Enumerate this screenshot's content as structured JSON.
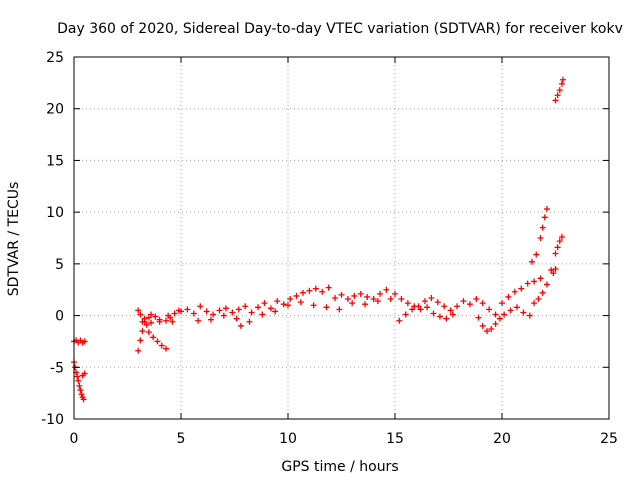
{
  "chart_data": {
    "type": "scatter",
    "title": "Day 360 of 2020, Sidereal Day-to-day VTEC variation (SDTVAR) for receiver kokv",
    "xlabel": "GPS time / hours",
    "ylabel": "SDTVAR / TECUs",
    "xlim": [
      0,
      25
    ],
    "ylim": [
      -10,
      25
    ],
    "xticks": [
      0,
      5,
      10,
      15,
      20,
      25
    ],
    "yticks": [
      -10,
      -5,
      0,
      5,
      10,
      15,
      20,
      25
    ],
    "xtick_labels": [
      "0",
      "5",
      "10",
      "15",
      "20",
      "25"
    ],
    "ytick_labels": [
      "-10",
      "-5",
      "0",
      "5",
      "10",
      "15",
      "20",
      "25"
    ],
    "grid": true,
    "marker": "+",
    "color": "#ff0000",
    "series": [
      {
        "name": "kokv",
        "points": [
          [
            0.0,
            -2.5
          ],
          [
            0.1,
            -2.4
          ],
          [
            0.2,
            -2.6
          ],
          [
            0.3,
            -2.4
          ],
          [
            0.4,
            -2.6
          ],
          [
            0.5,
            -2.5
          ],
          [
            0.0,
            -4.5
          ],
          [
            0.05,
            -5.0
          ],
          [
            0.1,
            -5.5
          ],
          [
            0.15,
            -5.9
          ],
          [
            0.2,
            -6.3
          ],
          [
            0.25,
            -6.8
          ],
          [
            0.3,
            -7.2
          ],
          [
            0.35,
            -7.6
          ],
          [
            0.4,
            -7.9
          ],
          [
            0.45,
            -8.1
          ],
          [
            0.4,
            -5.8
          ],
          [
            0.5,
            -5.6
          ],
          [
            3.0,
            -3.4
          ],
          [
            3.1,
            -2.4
          ],
          [
            3.2,
            -1.5
          ],
          [
            3.3,
            -0.6
          ],
          [
            3.4,
            -0.9
          ],
          [
            3.5,
            -1.6
          ],
          [
            3.7,
            -2.1
          ],
          [
            3.9,
            -2.5
          ],
          [
            4.1,
            -2.9
          ],
          [
            4.3,
            -3.2
          ],
          [
            3.0,
            0.5
          ],
          [
            3.1,
            0.1
          ],
          [
            3.3,
            -0.3
          ],
          [
            3.5,
            -0.2
          ],
          [
            3.6,
            0.1
          ],
          [
            3.8,
            -0.1
          ],
          [
            4.0,
            -0.4
          ],
          [
            4.3,
            -0.5
          ],
          [
            4.5,
            -0.2
          ],
          [
            4.7,
            0.2
          ],
          [
            4.9,
            0.5
          ],
          [
            3.2,
            -0.6
          ],
          [
            3.6,
            -0.7
          ],
          [
            4.0,
            -0.6
          ],
          [
            4.4,
            0.0
          ],
          [
            4.6,
            -0.6
          ],
          [
            5.0,
            0.4
          ],
          [
            5.3,
            0.6
          ],
          [
            5.6,
            0.2
          ],
          [
            5.9,
            0.9
          ],
          [
            6.2,
            0.4
          ],
          [
            6.5,
            0.1
          ],
          [
            6.8,
            0.5
          ],
          [
            7.1,
            0.7
          ],
          [
            7.4,
            0.3
          ],
          [
            7.7,
            0.6
          ],
          [
            8.0,
            0.9
          ],
          [
            8.3,
            0.3
          ],
          [
            8.6,
            0.8
          ],
          [
            8.9,
            1.2
          ],
          [
            9.2,
            0.7
          ],
          [
            9.5,
            1.4
          ],
          [
            9.8,
            1.1
          ],
          [
            10.1,
            1.6
          ],
          [
            10.4,
            1.9
          ],
          [
            10.7,
            2.2
          ],
          [
            11.0,
            2.4
          ],
          [
            11.3,
            2.6
          ],
          [
            11.6,
            2.3
          ],
          [
            11.9,
            2.7
          ],
          [
            12.2,
            1.7
          ],
          [
            12.5,
            2.0
          ],
          [
            12.8,
            1.6
          ],
          [
            13.1,
            1.9
          ],
          [
            13.4,
            2.1
          ],
          [
            13.7,
            1.8
          ],
          [
            14.0,
            1.6
          ],
          [
            14.3,
            2.1
          ],
          [
            14.6,
            2.5
          ],
          [
            5.8,
            -0.5
          ],
          [
            6.4,
            -0.4
          ],
          [
            7.0,
            0.0
          ],
          [
            7.6,
            -0.3
          ],
          [
            7.8,
            -1.0
          ],
          [
            8.2,
            -0.6
          ],
          [
            8.8,
            0.1
          ],
          [
            9.4,
            0.4
          ],
          [
            10.0,
            1.0
          ],
          [
            10.6,
            1.3
          ],
          [
            11.2,
            1.0
          ],
          [
            11.8,
            0.8
          ],
          [
            12.4,
            0.6
          ],
          [
            13.0,
            1.2
          ],
          [
            13.6,
            1.1
          ],
          [
            14.2,
            1.4
          ],
          [
            14.8,
            1.6
          ],
          [
            15.0,
            2.1
          ],
          [
            15.3,
            1.6
          ],
          [
            15.6,
            1.2
          ],
          [
            15.9,
            0.9
          ],
          [
            16.2,
            0.6
          ],
          [
            16.5,
            0.8
          ],
          [
            16.8,
            0.2
          ],
          [
            17.1,
            -0.1
          ],
          [
            17.4,
            -0.3
          ],
          [
            17.7,
            0.1
          ],
          [
            15.2,
            -0.5
          ],
          [
            15.5,
            0.1
          ],
          [
            15.8,
            0.6
          ],
          [
            16.1,
            0.9
          ],
          [
            16.4,
            1.4
          ],
          [
            16.7,
            1.7
          ],
          [
            17.0,
            1.3
          ],
          [
            17.3,
            0.9
          ],
          [
            17.6,
            0.5
          ],
          [
            17.9,
            0.9
          ],
          [
            18.2,
            1.4
          ],
          [
            18.5,
            1.1
          ],
          [
            18.8,
            1.6
          ],
          [
            19.1,
            1.2
          ],
          [
            19.4,
            0.6
          ],
          [
            19.7,
            0.1
          ],
          [
            18.9,
            -0.2
          ],
          [
            19.1,
            -1.0
          ],
          [
            19.3,
            -1.5
          ],
          [
            19.5,
            -1.3
          ],
          [
            19.7,
            -0.8
          ],
          [
            19.9,
            -0.3
          ],
          [
            20.1,
            0.1
          ],
          [
            20.4,
            0.5
          ],
          [
            20.7,
            0.8
          ],
          [
            21.0,
            0.3
          ],
          [
            21.3,
            0.0
          ],
          [
            20.0,
            1.2
          ],
          [
            20.3,
            1.8
          ],
          [
            20.6,
            2.3
          ],
          [
            20.9,
            2.6
          ],
          [
            21.2,
            3.1
          ],
          [
            21.5,
            3.3
          ],
          [
            21.8,
            3.6
          ],
          [
            21.5,
            1.2
          ],
          [
            21.7,
            1.6
          ],
          [
            21.9,
            2.2
          ],
          [
            22.1,
            3.0
          ],
          [
            22.3,
            4.4
          ],
          [
            22.5,
            4.5
          ],
          [
            22.4,
            4.1
          ],
          [
            21.4,
            5.2
          ],
          [
            21.6,
            5.9
          ],
          [
            21.8,
            7.5
          ],
          [
            21.9,
            8.5
          ],
          [
            22.0,
            9.5
          ],
          [
            22.1,
            10.3
          ],
          [
            22.5,
            6.0
          ],
          [
            22.6,
            6.6
          ],
          [
            22.7,
            7.2
          ],
          [
            22.8,
            7.6
          ],
          [
            22.5,
            20.8
          ],
          [
            22.6,
            21.3
          ],
          [
            22.7,
            21.8
          ],
          [
            22.8,
            22.4
          ],
          [
            22.85,
            22.8
          ]
        ]
      }
    ]
  }
}
